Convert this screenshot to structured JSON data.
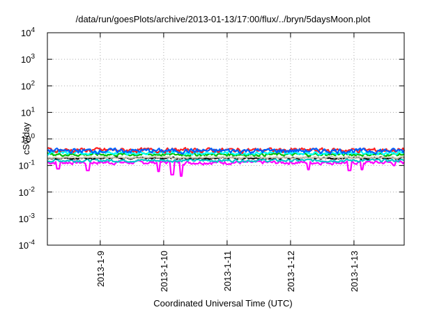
{
  "chart_data": {
    "type": "line",
    "title": "/data/run/goesPlots/archive/2013-01-13/17:00/flux/../bryn/5daysMoon.plot",
    "xlabel": "Coordinated Universal Time (UTC)",
    "ylabel": "cSv/day",
    "yscale": "log",
    "ylim": [
      0.0001,
      10000
    ],
    "xlim": [
      "2013-01-08T04:00",
      "2013-01-13T19:00"
    ],
    "grid": true,
    "y_ticks": [
      {
        "base": "10",
        "exp": "-4"
      },
      {
        "base": "10",
        "exp": "-3"
      },
      {
        "base": "10",
        "exp": "-2"
      },
      {
        "base": "10",
        "exp": "-1"
      },
      {
        "base": "10",
        "exp": "0"
      },
      {
        "base": "10",
        "exp": "1"
      },
      {
        "base": "10",
        "exp": "2"
      },
      {
        "base": "10",
        "exp": "3"
      },
      {
        "base": "10",
        "exp": "4"
      }
    ],
    "x_ticks": [
      "2013-1-9",
      "2013-1-10",
      "2013-1-11",
      "2013-1-12",
      "2013-1-13"
    ],
    "series": [
      {
        "color": "#ff00ff",
        "base": 0.13,
        "noise": 0.22,
        "dips": [
          [
            0.17,
            0.075
          ],
          [
            0.64,
            0.065
          ],
          [
            1.75,
            0.06
          ],
          [
            1.97,
            0.045
          ],
          [
            2.11,
            0.04
          ],
          [
            4.11,
            0.07
          ],
          [
            4.76,
            0.065
          ],
          [
            4.96,
            0.07
          ],
          [
            5.46,
            0.1
          ]
        ]
      },
      {
        "color": "#00c8c8",
        "base": 0.155,
        "noise": 0.18,
        "dips": []
      },
      {
        "color": "#000000",
        "base": 0.19,
        "noise": 0.12,
        "dips": []
      },
      {
        "color": "#c8c8b4",
        "base": 0.2,
        "noise": 0.1,
        "dips": []
      },
      {
        "color": "#00c000",
        "base": 0.26,
        "noise": 0.18,
        "dips": []
      },
      {
        "color": "#00ffff",
        "base": 0.3,
        "noise": 0.2,
        "dips": []
      },
      {
        "color": "#ff2020",
        "base": 0.38,
        "noise": 0.28,
        "dips": []
      },
      {
        "color": "#0060ff",
        "base": 0.36,
        "noise": 0.3,
        "dips": []
      }
    ]
  }
}
